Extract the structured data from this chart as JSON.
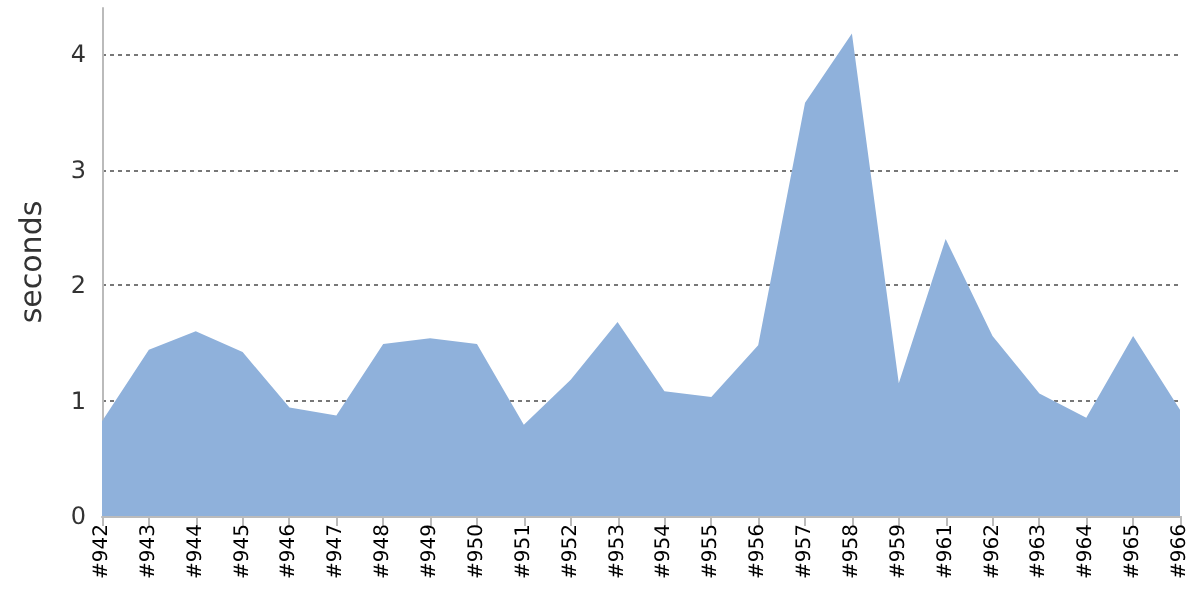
{
  "chart_data": {
    "type": "area",
    "ylabel": "seconds",
    "categories": [
      "#942",
      "#943",
      "#944",
      "#945",
      "#946",
      "#947",
      "#948",
      "#949",
      "#950",
      "#951",
      "#952",
      "#953",
      "#954",
      "#955",
      "#956",
      "#957",
      "#958",
      "#959",
      "#961",
      "#962",
      "#963",
      "#964",
      "#965",
      "#966"
    ],
    "values": [
      0.82,
      1.44,
      1.6,
      1.42,
      0.94,
      0.87,
      1.49,
      1.54,
      1.49,
      0.79,
      1.18,
      1.68,
      1.08,
      1.03,
      1.48,
      3.58,
      4.18,
      1.15,
      2.4,
      1.56,
      1.06,
      0.85,
      1.56,
      0.92
    ],
    "color": "#8fb1db",
    "ylim": [
      0,
      4.4
    ],
    "yticks": [
      0,
      1,
      2,
      3,
      4
    ],
    "grid": "y"
  }
}
